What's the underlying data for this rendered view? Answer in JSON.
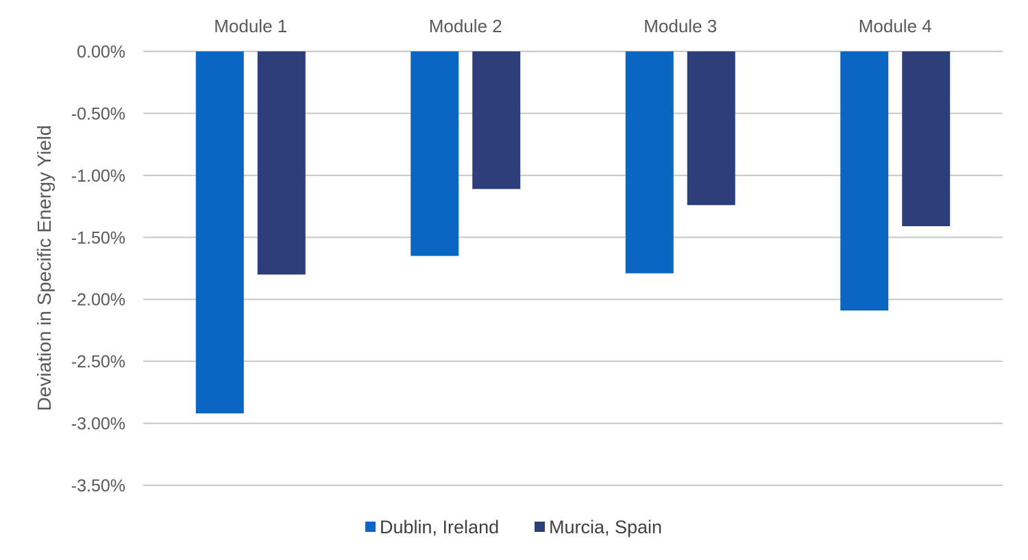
{
  "colors": {
    "dublin": "#0b66c3",
    "murcia": "#2e3e7b",
    "grid": "#c8c8c8",
    "text": "#595959"
  },
  "chart_data": {
    "type": "bar",
    "categories": [
      "Module 1",
      "Module 2",
      "Module 3",
      "Module 4"
    ],
    "series": [
      {
        "name": "Dublin, Ireland",
        "values": [
          -2.92,
          -1.65,
          -1.79,
          -2.09
        ]
      },
      {
        "name": "Murcia, Spain",
        "values": [
          -1.8,
          -1.11,
          -1.24,
          -1.41
        ]
      }
    ],
    "ylabel": "Deviation in Specific Energy Yield",
    "xlabel": "",
    "ylim": [
      -3.5,
      0
    ],
    "y_ticks": [
      0,
      -0.5,
      -1.0,
      -1.5,
      -2.0,
      -2.5,
      -3.0,
      -3.5
    ],
    "y_tick_labels": [
      "0.00%",
      "-0.50%",
      "-1.00%",
      "-1.50%",
      "-2.00%",
      "-2.50%",
      "-3.00%",
      "-3.50%"
    ],
    "category_axis_position": "top",
    "grid": true,
    "legend_position": "bottom"
  }
}
